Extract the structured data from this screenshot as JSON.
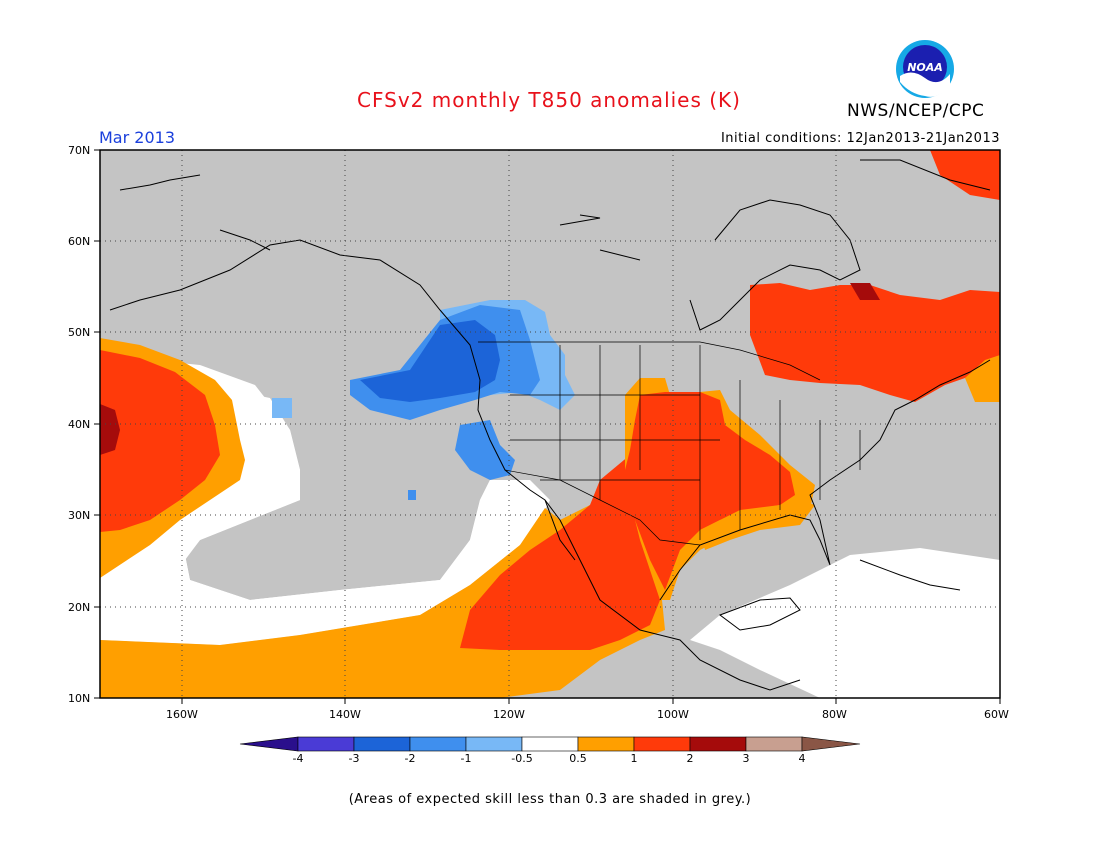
{
  "header": {
    "title": "CFSv2 monthly T850 anomalies (K)",
    "organization": "NWS/NCEP/CPC",
    "logo_text": "NOAA",
    "valid_period": "Mar 2013",
    "initial_conditions": "Initial conditions: 12Jan2013-21Jan2013"
  },
  "map": {
    "lat_labels": [
      "70N",
      "60N",
      "50N",
      "40N",
      "30N",
      "20N",
      "10N"
    ],
    "lon_labels": [
      "160W",
      "140W",
      "120W",
      "100W",
      "80W",
      "60W"
    ],
    "lon_range": [
      -170,
      -60
    ],
    "lat_range": [
      10,
      70
    ],
    "gridlines": "dotted"
  },
  "colorbar": {
    "ticks": [
      "-4",
      "-3",
      "-2",
      "-1",
      "-0.5",
      "0.5",
      "1",
      "2",
      "3",
      "4"
    ],
    "colors": [
      "#2a0f8c",
      "#4a3bd6",
      "#1c64d8",
      "#3f8fee",
      "#78b8f6",
      "#ffffff",
      "#ff9f00",
      "#ff3a0a",
      "#a50b0b",
      "#c89f90",
      "#8a5646"
    ],
    "grey": "#c4c4c4"
  },
  "footnote": "(Areas of expected skill less than 0.3 are shaded in grey.)"
}
